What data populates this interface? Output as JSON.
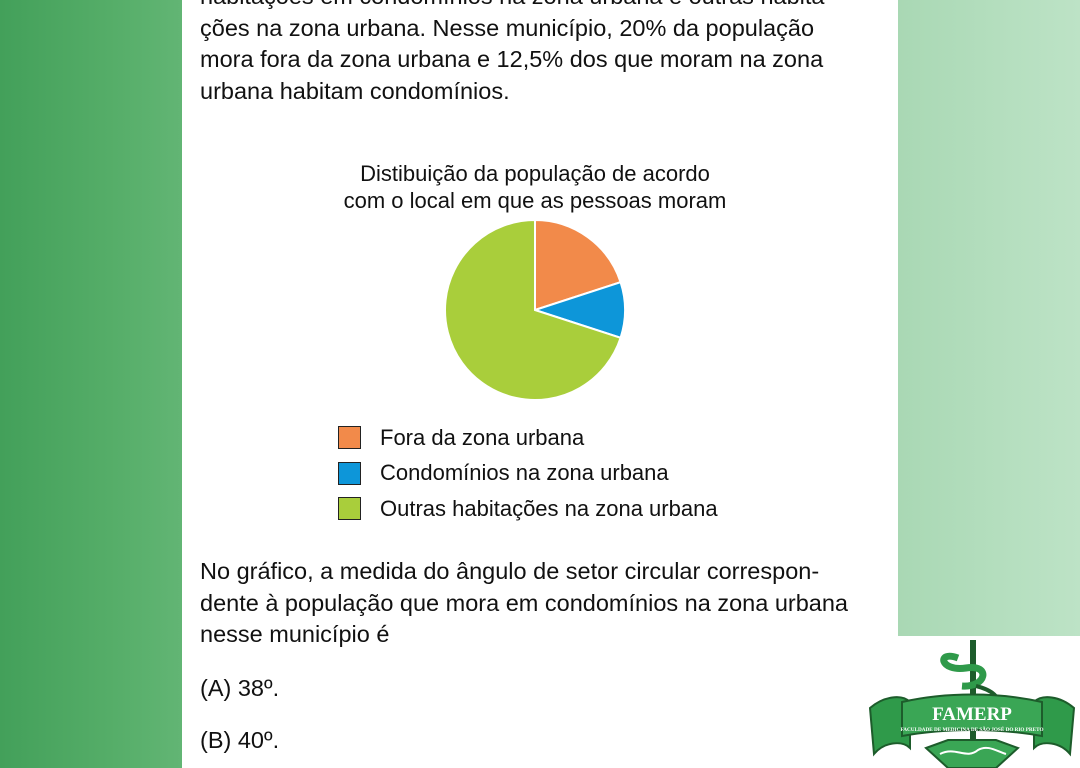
{
  "document": {
    "intro_lines": [
      "habitações em condomínios na zona urbana e outras habita-",
      "ções na zona urbana. Nesse município, 20% da população",
      "mora fora da zona urbana e 12,5% dos que moram na zona",
      "urbana habitam condomínios."
    ],
    "question_lines": [
      "No gráfico, a medida do ângulo de setor circular correspon-",
      "dente à população que mora em condomínios na zona urbana",
      "nesse município é"
    ],
    "options": [
      {
        "letter": "(A)",
        "text": "38º."
      },
      {
        "letter": "(B)",
        "text": "40º."
      }
    ]
  },
  "chart_data": {
    "type": "pie",
    "title_lines": [
      "Distibuição da população de acordo",
      "com o local em que as pessoas moram"
    ],
    "slices": [
      {
        "label": "Fora da zona urbana",
        "value": 20,
        "color": "#f28a4a"
      },
      {
        "label": "Condomínios na zona urbana",
        "value": 10,
        "color": "#0d96d9"
      },
      {
        "label": "Outras habitações na zona urbana",
        "value": 70,
        "color": "#a9ce3b"
      }
    ],
    "legend_placement": "bottom"
  },
  "logo": {
    "text": "FAMERP",
    "subtitle": "FACULDADE DE MEDICINA DE SÃO JOSÉ DO RIO PRETO",
    "icon": "caduceus-icon",
    "colors": {
      "ribbon": "#2f9a4a",
      "dark": "#1d5c2b"
    }
  }
}
